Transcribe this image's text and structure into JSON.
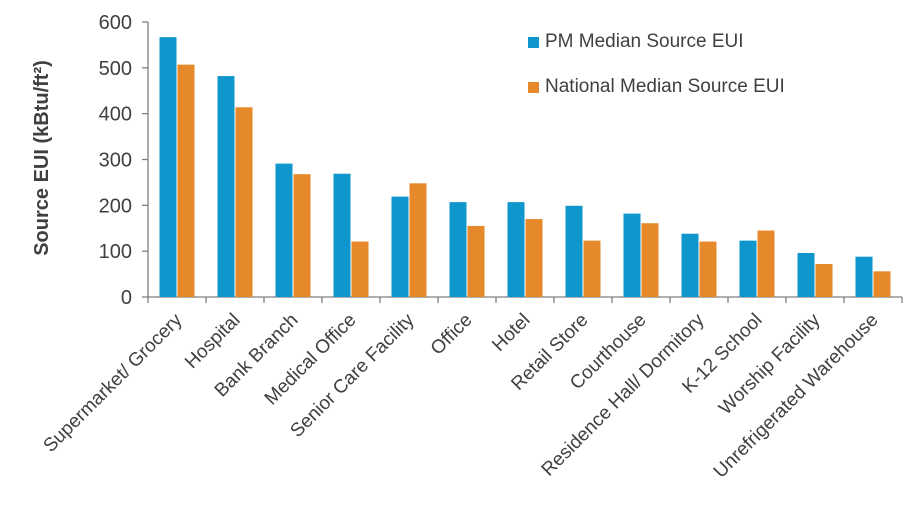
{
  "chart_data": {
    "type": "bar",
    "title": "",
    "xlabel": "",
    "ylabel": "Source EUI (kBtu/ft²)",
    "ylim": [
      0,
      600
    ],
    "yticks": [
      0,
      100,
      200,
      300,
      400,
      500,
      600
    ],
    "grid": false,
    "legend_position": "top-right",
    "categories": [
      "Supermarket/ Grocery",
      "Hospital",
      "Bank Branch",
      "Medical Office",
      "Senior Care Facility",
      "Office",
      "Hotel",
      "Retail Store",
      "Courthouse",
      "Residence Hall/ Dormitory",
      "K-12 School",
      "Worship Facility",
      "Unrefrigerated Warehouse"
    ],
    "series": [
      {
        "name": "PM Median Source EUI",
        "color": "#0e96cd",
        "values": [
          567,
          482,
          291,
          269,
          219,
          207,
          207,
          199,
          182,
          138,
          123,
          96,
          88
        ]
      },
      {
        "name": "National Median Source EUI",
        "color": "#e5892a",
        "values": [
          507,
          414,
          268,
          121,
          248,
          155,
          170,
          123,
          161,
          121,
          145,
          72,
          56
        ]
      }
    ]
  }
}
